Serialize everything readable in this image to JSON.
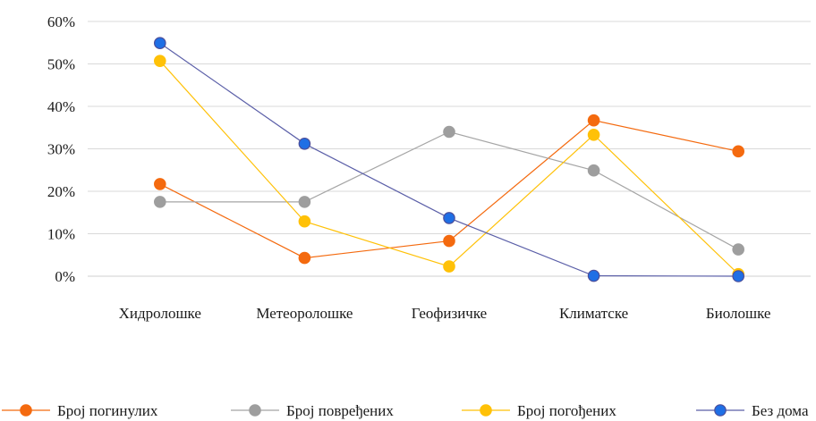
{
  "chart_data": {
    "type": "line",
    "title": "",
    "xlabel": "",
    "ylabel": "",
    "categories": [
      "Хидролошке",
      "Метеоролошке",
      "Геофизичке",
      "Климатске",
      "Биолошке"
    ],
    "ylim": [
      0,
      60
    ],
    "yticks": [
      "0%",
      "10%",
      "20%",
      "30%",
      "40%",
      "50%",
      "60%"
    ],
    "grid": true,
    "legend_position": "bottom",
    "series": [
      {
        "name": "Број погинулих",
        "color": "#F46A0F",
        "line_color": "#F46A0F",
        "marker_edge": "#F46A0F",
        "values": [
          21.7,
          4.3,
          8.3,
          36.7,
          29.4
        ]
      },
      {
        "name": "Број повређених",
        "color": "#9E9E9E",
        "line_color": "#A5A5A5",
        "marker_edge": "#9E9E9E",
        "values": [
          17.5,
          17.5,
          34.0,
          24.9,
          6.3
        ]
      },
      {
        "name": "Број погођених",
        "color": "#FFC107",
        "line_color": "#FFC107",
        "marker_edge": "#FFC107",
        "values": [
          50.7,
          12.9,
          2.3,
          33.3,
          0.5
        ]
      },
      {
        "name": "Без дома",
        "color": "#1F6FE5",
        "line_color": "#5B5FA8",
        "marker_edge": "#4B4E9A",
        "values": [
          54.9,
          31.2,
          13.7,
          0.1,
          0.0
        ]
      }
    ]
  }
}
